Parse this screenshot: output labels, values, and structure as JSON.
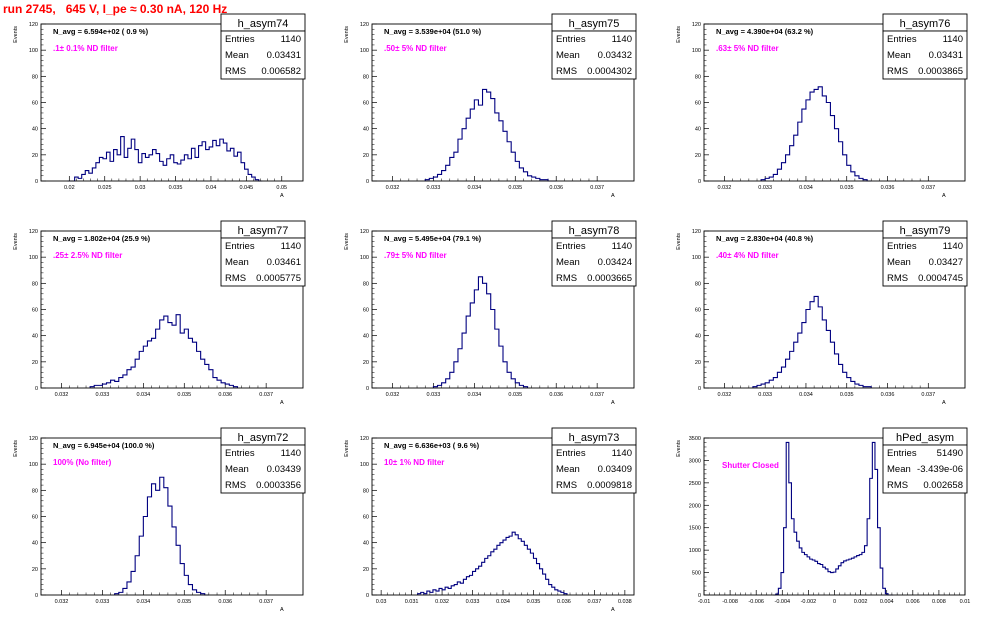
{
  "page": {
    "title": "run 2745,   645 V, I_pe ≈ 0.30 nA, 120 Hz",
    "colors": {
      "title": "#ff0000",
      "annotation": "#ff00ff",
      "histogram": "#000080",
      "frame": "#000000"
    }
  },
  "chart_data": [
    {
      "type": "histogram",
      "name": "h_asym74",
      "stats": {
        "entries": "1140",
        "mean": "0.03431",
        "rms": "0.006582"
      },
      "n_avg_label": "N_avg = 6.594e+02 ( 0.9 %)",
      "annotation": ".1± 0.1% ND filter",
      "ylabel": "Events",
      "xlabel": "A",
      "xlim": [
        0.016,
        0.053
      ],
      "ylim": [
        0,
        120
      ],
      "xticks": [
        "0.02",
        "0.025",
        "0.03",
        "0.035",
        "0.04",
        "0.045",
        "0.05"
      ],
      "xtick_values": [
        0.02,
        0.025,
        0.03,
        0.035,
        0.04,
        0.045,
        0.05
      ],
      "yticks": [
        0,
        20,
        40,
        60,
        80,
        100,
        120
      ],
      "bin_centers": [
        0.02,
        0.0205,
        0.021,
        0.0215,
        0.022,
        0.0225,
        0.023,
        0.0235,
        0.024,
        0.0245,
        0.025,
        0.0255,
        0.026,
        0.0265,
        0.027,
        0.0275,
        0.028,
        0.0285,
        0.029,
        0.0295,
        0.03,
        0.0305,
        0.031,
        0.0315,
        0.032,
        0.0325,
        0.033,
        0.0335,
        0.034,
        0.0345,
        0.035,
        0.0355,
        0.036,
        0.0365,
        0.037,
        0.0375,
        0.038,
        0.0385,
        0.039,
        0.0395,
        0.04,
        0.0405,
        0.041,
        0.0415,
        0.042,
        0.0425,
        0.043,
        0.0435,
        0.044,
        0.0445,
        0.045,
        0.0455,
        0.046,
        0.0465,
        0.047
      ],
      "values": [
        0,
        0,
        3,
        2,
        5,
        8,
        6,
        10,
        14,
        18,
        17,
        22,
        15,
        24,
        20,
        34,
        18,
        25,
        32,
        24,
        14,
        21,
        18,
        20,
        24,
        21,
        15,
        12,
        17,
        20,
        14,
        13,
        16,
        20,
        17,
        25,
        18,
        27,
        30,
        24,
        26,
        31,
        27,
        32,
        29,
        23,
        25,
        19,
        22,
        14,
        9,
        5,
        3,
        1,
        0
      ]
    },
    {
      "type": "histogram",
      "name": "h_asym75",
      "stats": {
        "entries": "1140",
        "mean": "0.03432",
        "rms": "0.0004302"
      },
      "n_avg_label": "N_avg = 3.539e+04 (51.0 %)",
      "annotation": ".50± 5% ND filter",
      "ylabel": "Events",
      "xlabel": "A",
      "xlim": [
        0.0315,
        0.0379
      ],
      "ylim": [
        0,
        120
      ],
      "xticks": [
        "0.032",
        "0.033",
        "0.034",
        "0.035",
        "0.036",
        "0.037"
      ],
      "xtick_values": [
        0.032,
        0.033,
        0.034,
        0.035,
        0.036,
        0.037
      ],
      "yticks": [
        0,
        20,
        40,
        60,
        80,
        100,
        120
      ],
      "bin_centers": [
        0.03285,
        0.03295,
        0.03305,
        0.03315,
        0.03325,
        0.03335,
        0.03345,
        0.03355,
        0.03365,
        0.03375,
        0.03385,
        0.03395,
        0.03405,
        0.03415,
        0.03425,
        0.03435,
        0.03445,
        0.03455,
        0.03465,
        0.03475,
        0.03485,
        0.03495,
        0.03505,
        0.03515,
        0.03525,
        0.03535,
        0.03545,
        0.03555,
        0.03565,
        0.03575,
        0.03585,
        0.03595
      ],
      "values": [
        1,
        2,
        3,
        5,
        8,
        12,
        18,
        22,
        32,
        40,
        48,
        55,
        62,
        58,
        70,
        68,
        63,
        52,
        46,
        38,
        30,
        22,
        15,
        10,
        7,
        4,
        3,
        2,
        1,
        1,
        0,
        0
      ]
    },
    {
      "type": "histogram",
      "name": "h_asym76",
      "stats": {
        "entries": "1140",
        "mean": "0.03431",
        "rms": "0.0003865"
      },
      "n_avg_label": "N_avg = 4.390e+04 (63.2 %)",
      "annotation": ".63± 5% ND filter",
      "ylabel": "Events",
      "xlabel": "A",
      "xlim": [
        0.0315,
        0.0379
      ],
      "ylim": [
        0,
        120
      ],
      "xticks": [
        "0.032",
        "0.033",
        "0.034",
        "0.035",
        "0.036",
        "0.037"
      ],
      "xtick_values": [
        0.032,
        0.033,
        0.034,
        0.035,
        0.036,
        0.037
      ],
      "yticks": [
        0,
        20,
        40,
        60,
        80,
        100,
        120
      ],
      "bin_centers": [
        0.03295,
        0.03305,
        0.03315,
        0.03325,
        0.03335,
        0.03345,
        0.03355,
        0.03365,
        0.03375,
        0.03385,
        0.03395,
        0.03405,
        0.03415,
        0.03425,
        0.03435,
        0.03445,
        0.03455,
        0.03465,
        0.03475,
        0.03485,
        0.03495,
        0.03505,
        0.03515,
        0.03525,
        0.03535,
        0.03545,
        0.03555
      ],
      "values": [
        1,
        2,
        3,
        5,
        9,
        14,
        20,
        27,
        35,
        45,
        55,
        62,
        68,
        70,
        72,
        65,
        60,
        50,
        40,
        30,
        20,
        12,
        7,
        4,
        2,
        1,
        0
      ]
    },
    {
      "type": "histogram",
      "name": "h_asym77",
      "stats": {
        "entries": "1140",
        "mean": "0.03461",
        "rms": "0.0005775"
      },
      "n_avg_label": "N_avg = 1.802e+04 (25.9 %)",
      "annotation": ".25± 2.5% ND filter",
      "ylabel": "Events",
      "xlabel": "A",
      "xlim": [
        0.0315,
        0.0379
      ],
      "ylim": [
        0,
        120
      ],
      "xticks": [
        "0.032",
        "0.033",
        "0.034",
        "0.035",
        "0.036",
        "0.037"
      ],
      "xtick_values": [
        0.032,
        0.033,
        0.034,
        0.035,
        0.036,
        0.037
      ],
      "yticks": [
        0,
        20,
        40,
        60,
        80,
        100,
        120
      ],
      "bin_centers": [
        0.03275,
        0.03285,
        0.03295,
        0.03305,
        0.03315,
        0.03325,
        0.03335,
        0.03345,
        0.03355,
        0.03365,
        0.03375,
        0.03385,
        0.03395,
        0.03405,
        0.03415,
        0.03425,
        0.03435,
        0.03445,
        0.03455,
        0.03465,
        0.03475,
        0.03485,
        0.03495,
        0.03505,
        0.03515,
        0.03525,
        0.03535,
        0.03545,
        0.03555,
        0.03565,
        0.03575,
        0.03585,
        0.03595,
        0.03605,
        0.03615,
        0.03625
      ],
      "values": [
        1,
        2,
        2,
        3,
        4,
        6,
        5,
        8,
        10,
        14,
        16,
        22,
        28,
        32,
        36,
        38,
        45,
        52,
        55,
        50,
        48,
        56,
        42,
        45,
        38,
        35,
        28,
        22,
        18,
        14,
        8,
        6,
        4,
        3,
        2,
        1
      ]
    },
    {
      "type": "histogram",
      "name": "h_asym78",
      "stats": {
        "entries": "1140",
        "mean": "0.03424",
        "rms": "0.0003665"
      },
      "n_avg_label": "N_avg = 5.495e+04 (79.1 %)",
      "annotation": ".79± 5% ND filter",
      "ylabel": "Events",
      "xlabel": "A",
      "xlim": [
        0.0315,
        0.0379
      ],
      "ylim": [
        0,
        120
      ],
      "xticks": [
        "0.032",
        "0.033",
        "0.034",
        "0.035",
        "0.036",
        "0.037"
      ],
      "xtick_values": [
        0.032,
        0.033,
        0.034,
        0.035,
        0.036,
        0.037
      ],
      "yticks": [
        0,
        20,
        40,
        60,
        80,
        100,
        120
      ],
      "bin_centers": [
        0.03305,
        0.03315,
        0.03325,
        0.03335,
        0.03345,
        0.03355,
        0.03365,
        0.03375,
        0.03385,
        0.03395,
        0.03405,
        0.03415,
        0.03425,
        0.03435,
        0.03445,
        0.03455,
        0.03465,
        0.03475,
        0.03485,
        0.03495,
        0.03505,
        0.03515,
        0.03525
      ],
      "values": [
        1,
        2,
        4,
        7,
        12,
        20,
        30,
        42,
        55,
        65,
        75,
        85,
        80,
        72,
        60,
        45,
        32,
        20,
        12,
        7,
        4,
        2,
        1
      ]
    },
    {
      "type": "histogram",
      "name": "h_asym79",
      "stats": {
        "entries": "1140",
        "mean": "0.03427",
        "rms": "0.0004745"
      },
      "n_avg_label": "N_avg = 2.830e+04 (40.8 %)",
      "annotation": ".40± 4% ND filter",
      "ylabel": "Events",
      "xlabel": "A",
      "xlim": [
        0.0315,
        0.0379
      ],
      "ylim": [
        0,
        120
      ],
      "xticks": [
        "0.032",
        "0.033",
        "0.034",
        "0.035",
        "0.036",
        "0.037"
      ],
      "xtick_values": [
        0.032,
        0.033,
        0.034,
        0.035,
        0.036,
        0.037
      ],
      "yticks": [
        0,
        20,
        40,
        60,
        80,
        100,
        120
      ],
      "bin_centers": [
        0.03275,
        0.03285,
        0.03295,
        0.03305,
        0.03315,
        0.03325,
        0.03335,
        0.03345,
        0.03355,
        0.03365,
        0.03375,
        0.03385,
        0.03395,
        0.03405,
        0.03415,
        0.03425,
        0.03435,
        0.03445,
        0.03455,
        0.03465,
        0.03475,
        0.03485,
        0.03495,
        0.03505,
        0.03515,
        0.03525,
        0.03535,
        0.03545,
        0.03555
      ],
      "values": [
        1,
        2,
        3,
        4,
        6,
        8,
        12,
        16,
        22,
        28,
        35,
        42,
        50,
        60,
        66,
        70,
        62,
        52,
        44,
        35,
        26,
        18,
        12,
        8,
        5,
        3,
        2,
        1,
        1
      ]
    },
    {
      "type": "histogram",
      "name": "h_asym72",
      "stats": {
        "entries": "1140",
        "mean": "0.03439",
        "rms": "0.0003356"
      },
      "n_avg_label": "N_avg = 6.945e+04 (100.0 %)",
      "annotation": "100% (No filter)",
      "ylabel": "Events",
      "xlabel": "A",
      "xlim": [
        0.0315,
        0.0379
      ],
      "ylim": [
        0,
        120
      ],
      "xticks": [
        "0.032",
        "0.033",
        "0.034",
        "0.035",
        "0.036",
        "0.037"
      ],
      "xtick_values": [
        0.032,
        0.033,
        0.034,
        0.035,
        0.036,
        0.037
      ],
      "yticks": [
        0,
        20,
        40,
        60,
        80,
        100,
        120
      ],
      "bin_centers": [
        0.03335,
        0.03345,
        0.03355,
        0.03365,
        0.03375,
        0.03385,
        0.03395,
        0.03405,
        0.03415,
        0.03425,
        0.03435,
        0.03445,
        0.03455,
        0.03465,
        0.03475,
        0.03485,
        0.03495,
        0.03505,
        0.03515,
        0.03525,
        0.03535,
        0.03545,
        0.03555
      ],
      "values": [
        1,
        2,
        5,
        10,
        18,
        30,
        45,
        60,
        75,
        85,
        80,
        90,
        82,
        68,
        52,
        38,
        24,
        15,
        8,
        4,
        2,
        1,
        0
      ]
    },
    {
      "type": "histogram",
      "name": "h_asym73",
      "stats": {
        "entries": "1140",
        "mean": "0.03409",
        "rms": "0.0009818"
      },
      "n_avg_label": "N_avg = 6.636e+03 ( 9.6 %)",
      "annotation": "10± 1% ND filter",
      "ylabel": "Events",
      "xlabel": "A",
      "xlim": [
        0.0297,
        0.0383
      ],
      "ylim": [
        0,
        120
      ],
      "xticks": [
        "0.03",
        "0.031",
        "0.032",
        "0.033",
        "0.034",
        "0.035",
        "0.036",
        "0.037",
        "0.038"
      ],
      "xtick_values": [
        0.03,
        0.031,
        0.032,
        0.033,
        0.034,
        0.035,
        0.036,
        0.037,
        0.038
      ],
      "yticks": [
        0,
        20,
        40,
        60,
        80,
        100,
        120
      ],
      "bin_centers": [
        0.03125,
        0.03135,
        0.03145,
        0.03155,
        0.03165,
        0.03175,
        0.03185,
        0.03195,
        0.03205,
        0.03215,
        0.03225,
        0.03235,
        0.03245,
        0.03255,
        0.03265,
        0.03275,
        0.03285,
        0.03295,
        0.03305,
        0.03315,
        0.03325,
        0.03335,
        0.03345,
        0.03355,
        0.03365,
        0.03375,
        0.03385,
        0.03395,
        0.03405,
        0.03415,
        0.03425,
        0.03435,
        0.03445,
        0.03455,
        0.03465,
        0.03475,
        0.03485,
        0.03495,
        0.03505,
        0.03515,
        0.03525,
        0.03535,
        0.03545,
        0.03555,
        0.03565,
        0.03575,
        0.03585,
        0.03595,
        0.03605
      ],
      "values": [
        1,
        2,
        1,
        3,
        2,
        4,
        3,
        5,
        4,
        6,
        5,
        7,
        8,
        10,
        9,
        12,
        14,
        15,
        18,
        20,
        22,
        25,
        28,
        30,
        33,
        35,
        38,
        40,
        42,
        44,
        45,
        48,
        46,
        43,
        41,
        38,
        35,
        32,
        28,
        24,
        20,
        16,
        12,
        8,
        6,
        4,
        3,
        2,
        1
      ]
    },
    {
      "type": "histogram",
      "name": "hPed_asym",
      "stats": {
        "entries": "51490",
        "mean": "-3.439e-06",
        "rms": "0.002658"
      },
      "annotation": "Shutter Closed",
      "ylabel": "Events",
      "xlabel": "",
      "xlim": [
        -0.01,
        0.01
      ],
      "ylim": [
        0,
        3500
      ],
      "xticks": [
        "-0.01",
        "-0.008",
        "-0.006",
        "-0.004",
        "-0.002",
        "0",
        "0.002",
        "0.004",
        "0.006",
        "0.008",
        "0.01"
      ],
      "xtick_values": [
        -0.01,
        -0.008,
        -0.006,
        -0.004,
        -0.002,
        0,
        0.002,
        0.004,
        0.006,
        0.008,
        0.01
      ],
      "yticks": [
        0,
        500,
        1000,
        1500,
        2000,
        2500,
        3000,
        3500
      ],
      "bin_centers": [
        -0.0046,
        -0.0044,
        -0.0042,
        -0.004,
        -0.0038,
        -0.0036,
        -0.0034,
        -0.0032,
        -0.003,
        -0.0028,
        -0.0026,
        -0.0024,
        -0.0022,
        -0.002,
        -0.0018,
        -0.0016,
        -0.0014,
        -0.0012,
        -0.001,
        -0.0008,
        -0.0006,
        -0.0004,
        -0.0002,
        0,
        0.0002,
        0.0004,
        0.0006,
        0.0008,
        0.001,
        0.0012,
        0.0014,
        0.0016,
        0.0018,
        0.002,
        0.0022,
        0.0024,
        0.0026,
        0.0028,
        0.003,
        0.0032,
        0.0034,
        0.0036,
        0.0038,
        0.004,
        0.0042,
        0.0044
      ],
      "values": [
        0,
        20,
        150,
        500,
        1500,
        3400,
        2500,
        1700,
        1400,
        1200,
        1050,
        950,
        900,
        850,
        800,
        780,
        750,
        700,
        680,
        620,
        580,
        520,
        500,
        510,
        580,
        650,
        720,
        760,
        780,
        800,
        820,
        850,
        880,
        900,
        950,
        1100,
        1700,
        2600,
        3400,
        2800,
        1500,
        600,
        150,
        30,
        0,
        0
      ]
    }
  ]
}
